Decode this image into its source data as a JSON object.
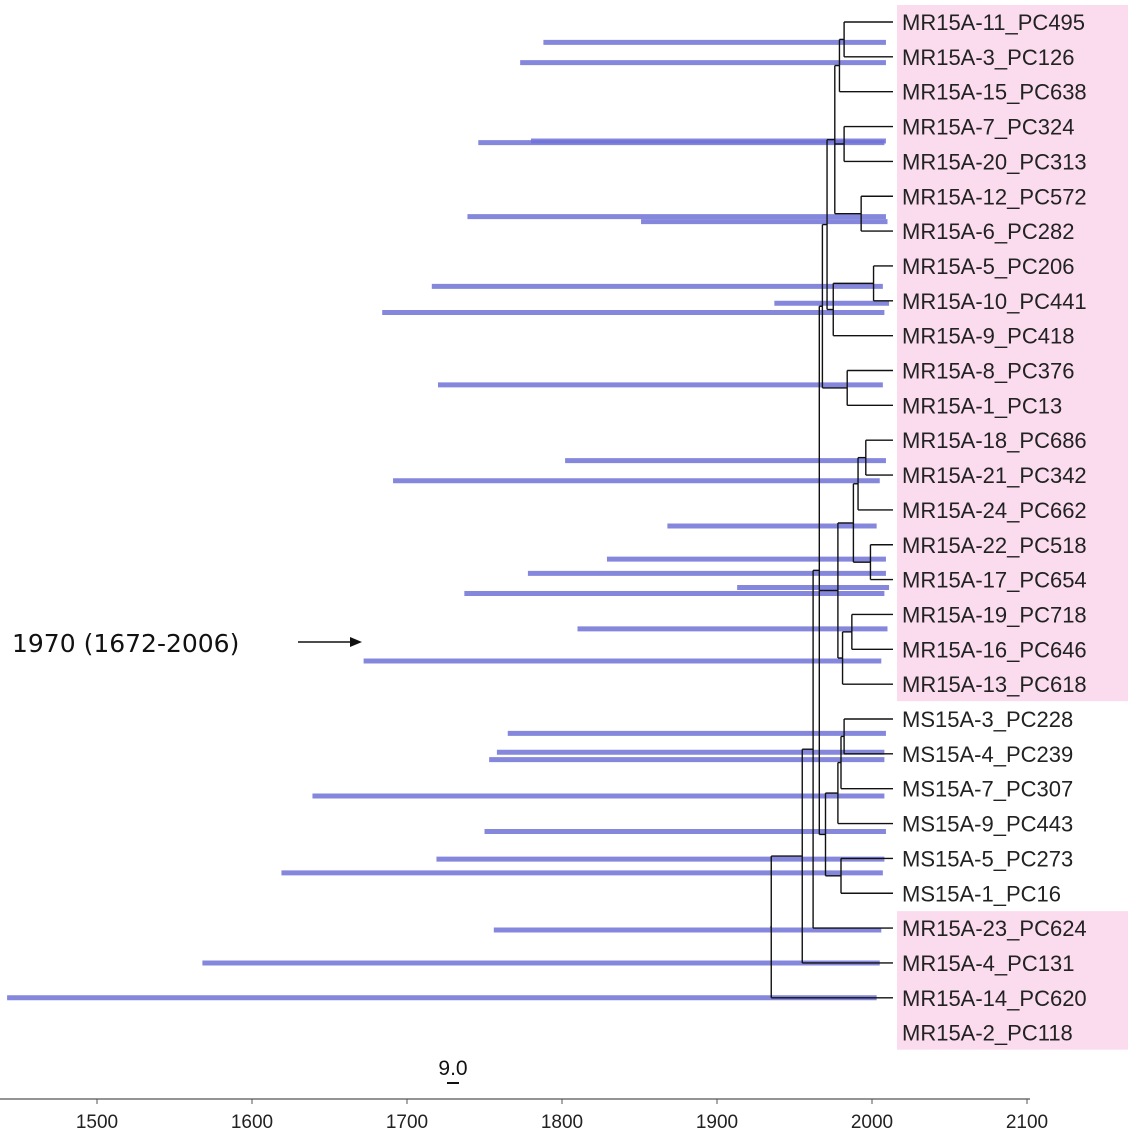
{
  "diagram": {
    "type": "time-scaled phylogenetic tree",
    "highlight_color": "#fadcee",
    "hpd_color": "#6f72d6",
    "axis": {
      "min": 1440,
      "max": 2100,
      "ticks": [
        1500,
        1600,
        1700,
        1800,
        1900,
        2000,
        2100
      ]
    },
    "scale_bar": {
      "label": "9.0"
    },
    "annotation": {
      "label": "1970 (1672-2006)",
      "year": 1672
    },
    "tips": [
      {
        "name": "MR15A-11_PC495",
        "highlight": true
      },
      {
        "name": "MR15A-3_PC126",
        "highlight": true
      },
      {
        "name": "MR15A-15_PC638",
        "highlight": true
      },
      {
        "name": "MR15A-7_PC324",
        "highlight": true
      },
      {
        "name": "MR15A-20_PC313",
        "highlight": true
      },
      {
        "name": "MR15A-12_PC572",
        "highlight": true
      },
      {
        "name": "MR15A-6_PC282",
        "highlight": true
      },
      {
        "name": "MR15A-5_PC206",
        "highlight": true
      },
      {
        "name": "MR15A-10_PC441",
        "highlight": true
      },
      {
        "name": "MR15A-9_PC418",
        "highlight": true
      },
      {
        "name": "MR15A-8_PC376",
        "highlight": true
      },
      {
        "name": "MR15A-1_PC13",
        "highlight": true
      },
      {
        "name": "MR15A-18_PC686",
        "highlight": true
      },
      {
        "name": "MR15A-21_PC342",
        "highlight": true
      },
      {
        "name": "MR15A-24_PC662",
        "highlight": true
      },
      {
        "name": "MR15A-22_PC518",
        "highlight": true
      },
      {
        "name": "MR15A-17_PC654",
        "highlight": true
      },
      {
        "name": "MR15A-19_PC718",
        "highlight": true
      },
      {
        "name": "MR15A-16_PC646",
        "highlight": true
      },
      {
        "name": "MR15A-13_PC618",
        "highlight": true
      },
      {
        "name": "MS15A-3_PC228",
        "highlight": false
      },
      {
        "name": "MS15A-4_PC239",
        "highlight": false
      },
      {
        "name": "MS15A-7_PC307",
        "highlight": false
      },
      {
        "name": "MS15A-9_PC443",
        "highlight": false
      },
      {
        "name": "MS15A-5_PC273",
        "highlight": false
      },
      {
        "name": "MS15A-1_PC16",
        "highlight": false
      },
      {
        "name": "MR15A-23_PC624",
        "highlight": true
      },
      {
        "name": "MR15A-4_PC131",
        "highlight": true
      },
      {
        "name": "MR15A-14_PC620",
        "highlight": true
      },
      {
        "name": "MR15A-2_PC118",
        "highlight": true
      }
    ],
    "tree": {
      "year": 1935,
      "children": [
        {
          "year": 1955,
          "children": [
            {
              "year": 1962,
              "children": [
                {
                  "year": 1966,
                  "children": [
                    {
                      "year": 1968,
                      "children": [
                        {
                          "year": 1971,
                          "children": [
                            {
                              "year": 1976,
                              "children": [
                                {
                                  "year": 1979,
                                  "children": [
                                    {
                                      "year": 1982,
                                      "children": [
                                        {
                                          "tip": 0
                                        },
                                        {
                                          "tip": 1
                                        }
                                      ]
                                    },
                                    {
                                      "tip": 2
                                    }
                                  ]
                                },
                                {
                                  "year": 1982,
                                  "children": [
                                    {
                                      "tip": 3
                                    },
                                    {
                                      "tip": 4
                                    }
                                  ]
                                },
                                {
                                  "year": 1993,
                                  "children": [
                                    {
                                      "tip": 5
                                    },
                                    {
                                      "tip": 6
                                    }
                                  ]
                                }
                              ]
                            },
                            {
                              "year": 1975,
                              "children": [
                                {
                                  "year": 2001,
                                  "children": [
                                    {
                                      "tip": 7
                                    },
                                    {
                                      "tip": 8
                                    }
                                  ]
                                },
                                {
                                  "tip": 9
                                }
                              ]
                            }
                          ]
                        },
                        {
                          "year": 1984,
                          "children": [
                            {
                              "tip": 10
                            },
                            {
                              "tip": 11
                            }
                          ]
                        }
                      ]
                    },
                    {
                      "year": 1969,
                      "children": [
                        {
                          "year": 1978,
                          "children": [
                            {
                              "year": 1988,
                              "children": [
                                {
                                  "year": 1991,
                                  "children": [
                                    {
                                      "year": 1996,
                                      "children": [
                                        {
                                          "tip": 12
                                        },
                                        {
                                          "tip": 13
                                        }
                                      ]
                                    },
                                    {
                                      "tip": 14
                                    }
                                  ]
                                },
                                {
                                  "year": 1999,
                                  "children": [
                                    {
                                      "tip": 15
                                    },
                                    {
                                      "tip": 16
                                    }
                                  ]
                                }
                              ]
                            },
                            {
                              "year": 1981,
                              "children": [
                                {
                                  "year": 1987,
                                  "children": [
                                    {
                                      "tip": 17
                                    },
                                    {
                                      "tip": 18
                                    }
                                  ]
                                },
                                {
                                  "tip": 19
                                }
                              ]
                            }
                          ]
                        }
                      ]
                    },
                    {
                      "year": 1970,
                      "children": [
                        {
                          "year": 1978,
                          "children": [
                            {
                              "year": 1980,
                              "children": [
                                {
                                  "year": 1982,
                                  "children": [
                                    {
                                      "tip": 20
                                    },
                                    {
                                      "tip": 21
                                    }
                                  ]
                                },
                                {
                                  "tip": 22
                                }
                              ]
                            },
                            {
                              "tip": 23
                            }
                          ]
                        },
                        {
                          "year": 1980,
                          "children": [
                            {
                              "tip": 24
                            },
                            {
                              "tip": 25
                            }
                          ]
                        }
                      ]
                    }
                  ]
                },
                {
                  "tip": 26
                }
              ]
            },
            {
              "tip": 27
            }
          ]
        },
        {
          "tip": 28
        }
      ]
    },
    "hpd_intervals": [
      [
        1788,
        2009
      ],
      [
        1773,
        2009
      ],
      [
        1746,
        2008
      ],
      [
        1780,
        2009
      ],
      [
        1739,
        2009
      ],
      [
        1851,
        2010
      ],
      [
        1716,
        2007
      ],
      [
        1937,
        2011
      ],
      [
        1684,
        2008
      ],
      [
        1720,
        2007
      ],
      [
        1802,
        2009
      ],
      [
        1691,
        2005
      ],
      [
        1868,
        2003
      ],
      [
        1829,
        2009
      ],
      [
        1778,
        2009
      ],
      [
        1913,
        2011
      ],
      [
        1737,
        2008
      ],
      [
        1810,
        2010
      ],
      [
        1672,
        2006
      ],
      [
        1765,
        2009
      ],
      [
        1758,
        2008
      ],
      [
        1753,
        2008
      ],
      [
        1639,
        2008
      ],
      [
        1750,
        2009
      ],
      [
        1719,
        2008
      ],
      [
        1619,
        2007
      ],
      [
        1756,
        2006
      ],
      [
        1568,
        2005
      ],
      [
        1442,
        2003
      ]
    ]
  }
}
